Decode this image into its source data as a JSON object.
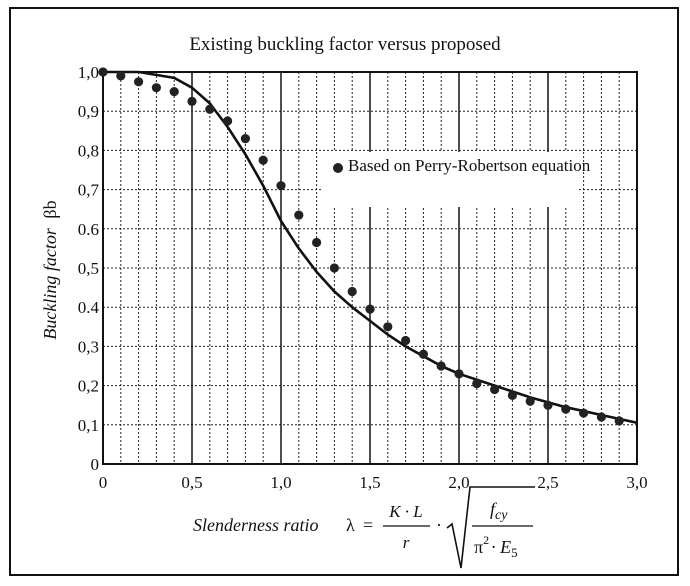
{
  "chart_data": {
    "type": "scatter",
    "title": "Existing buckling factor versus proposed",
    "xlabel": {
      "prefix": "Slenderness ratio",
      "lambda": "λ",
      "eq": "=",
      "num": "K · L",
      "den": "r",
      "dot": "·",
      "root_num": "f",
      "root_num_sub": "cy",
      "root_den_pi": "π",
      "root_den_sq": "2",
      "root_den_rest": "· E",
      "root_den_sub": "5"
    },
    "ylabel": {
      "main": "Buckling factor",
      "symbol": "βb"
    },
    "xlim": [
      0,
      3.0
    ],
    "ylim": [
      0,
      1.0
    ],
    "x_ticks": [
      "0",
      "0,5",
      "1,0",
      "1,5",
      "2,0",
      "2,5",
      "3,0"
    ],
    "y_ticks": [
      "0",
      "0,1",
      "0,2",
      "0,3",
      "0.4",
      "0,5",
      "0.6",
      "0,7",
      "0,8",
      "0,9",
      "1,0"
    ],
    "grid": true,
    "legend": "Based on Perry-Robertson equation",
    "series": [
      {
        "name": "Based on Perry-Robertson equation",
        "kind": "points",
        "x": [
          0,
          0.1,
          0.2,
          0.3,
          0.4,
          0.5,
          0.6,
          0.7,
          0.8,
          0.9,
          1.0,
          1.1,
          1.2,
          1.3,
          1.4,
          1.5,
          1.6,
          1.7,
          1.8,
          1.9,
          2.0,
          2.1,
          2.2,
          2.3,
          2.4,
          2.5,
          2.6,
          2.7,
          2.8,
          2.9
        ],
        "y": [
          1.0,
          0.99,
          0.975,
          0.96,
          0.95,
          0.925,
          0.905,
          0.875,
          0.83,
          0.775,
          0.71,
          0.635,
          0.565,
          0.5,
          0.44,
          0.395,
          0.35,
          0.315,
          0.28,
          0.25,
          0.23,
          0.205,
          0.19,
          0.175,
          0.16,
          0.15,
          0.14,
          0.13,
          0.12,
          0.11
        ]
      },
      {
        "kind": "curve",
        "x": [
          0,
          0.2,
          0.4,
          0.5,
          0.6,
          0.7,
          0.8,
          0.9,
          1.0,
          1.1,
          1.2,
          1.3,
          1.4,
          1.5,
          1.6,
          1.7,
          1.8,
          1.9,
          2.0,
          2.2,
          2.4,
          2.6,
          2.8,
          3.0
        ],
        "y": [
          1.0,
          1.0,
          0.985,
          0.96,
          0.92,
          0.86,
          0.79,
          0.71,
          0.62,
          0.55,
          0.49,
          0.44,
          0.4,
          0.365,
          0.33,
          0.3,
          0.275,
          0.25,
          0.23,
          0.2,
          0.17,
          0.145,
          0.125,
          0.105
        ]
      }
    ]
  }
}
